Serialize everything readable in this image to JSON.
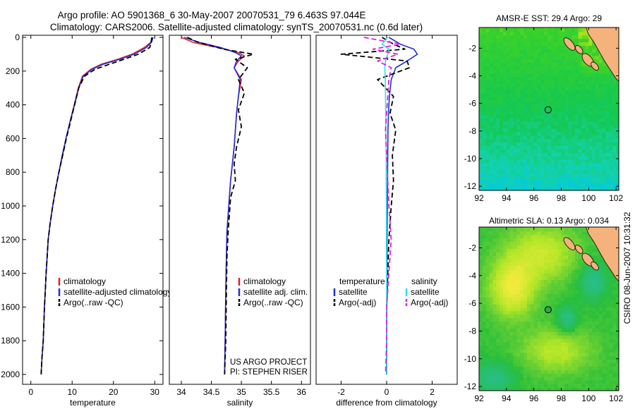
{
  "header": {
    "line1": "Argo profile: AO 5901368_6 30-May-2007 20070531_79 6.463S 97.044E",
    "line2": "Climatology: CARS2006. Satellite-adjusted climatology: synTS_20070531.nc (0.6d later)"
  },
  "side_label": "CSIRO 08-Jun-2007 10:31:32",
  "colors": {
    "red": "#e02020",
    "blue": "#1f2fd8",
    "black": "#000000",
    "cyan": "#30e0e8",
    "magenta": "#e020e0"
  },
  "chart_data": [
    {
      "type": "line",
      "id": "temperature",
      "xlabel": "temperature",
      "xlim": [
        -2,
        32
      ],
      "ylim": [
        2080,
        0
      ],
      "y_reversed": true,
      "xticks": [
        0,
        10,
        20,
        30
      ],
      "yticks": [
        0,
        200,
        400,
        600,
        800,
        1000,
        1200,
        1400,
        1600,
        1800,
        2000
      ],
      "legend": {
        "position": "right-middle",
        "entries": [
          "climatology",
          "satellite-adjusted climatology",
          "Argo(..raw -QC)"
        ]
      },
      "series": [
        {
          "name": "climatology",
          "color": "red",
          "style": "solid",
          "x": [
            29.5,
            29.0,
            27.5,
            24.5,
            21.0,
            17.0,
            14.5,
            12.5,
            11.5,
            10.5,
            9.5,
            8.5,
            7.7,
            6.8,
            6.0,
            5.3,
            4.7,
            4.2,
            3.7,
            3.3,
            3.0,
            2.7,
            2.5
          ],
          "y": [
            0,
            30,
            60,
            100,
            130,
            160,
            190,
            230,
            300,
            400,
            500,
            600,
            700,
            800,
            900,
            1000,
            1100,
            1200,
            1400,
            1600,
            1800,
            1900,
            2000
          ]
        },
        {
          "name": "satellite-adjusted climatology",
          "color": "blue",
          "style": "solid",
          "x": [
            29.6,
            29.2,
            28.0,
            25.0,
            21.5,
            17.5,
            14.8,
            12.7,
            11.6,
            10.6,
            9.5,
            8.5,
            7.6,
            6.8,
            6.0,
            5.3,
            4.7,
            4.2,
            3.7,
            3.3,
            3.0,
            2.7,
            2.5
          ],
          "y": [
            0,
            30,
            60,
            100,
            130,
            160,
            190,
            230,
            300,
            400,
            500,
            600,
            700,
            800,
            900,
            1000,
            1100,
            1200,
            1400,
            1600,
            1800,
            1900,
            2000
          ]
        },
        {
          "name": "Argo(..raw -QC)",
          "color": "black",
          "style": "dashed",
          "x": [
            29.3,
            29.1,
            28.8,
            26.0,
            22.5,
            19.0,
            15.5,
            13.0,
            11.6,
            10.6,
            9.6,
            8.6,
            7.7,
            6.8,
            6.0,
            5.3,
            4.7,
            4.2,
            3.7,
            3.3,
            3.0,
            2.7,
            2.5
          ],
          "y": [
            0,
            30,
            60,
            100,
            130,
            160,
            190,
            230,
            300,
            400,
            500,
            600,
            700,
            800,
            900,
            1000,
            1100,
            1200,
            1400,
            1600,
            1800,
            1900,
            2000
          ]
        }
      ]
    },
    {
      "type": "line",
      "id": "salinity",
      "xlabel": "salinity",
      "xlim": [
        33.8,
        36.15
      ],
      "ylim": [
        2080,
        0
      ],
      "y_reversed": true,
      "xticks": [
        34,
        34.5,
        35,
        35.5,
        36
      ],
      "yticks": [],
      "legend": {
        "position": "right-middle",
        "entries": [
          "climatology",
          "satellite adj. clim.",
          "Argo(..raw -QC)"
        ]
      },
      "annotations": [
        "US ARGO PROJECT",
        "PI: STEPHEN RISER"
      ],
      "series": [
        {
          "name": "climatology",
          "color": "red",
          "style": "solid",
          "x": [
            34.0,
            34.2,
            34.6,
            34.95,
            35.05,
            34.95,
            34.88,
            35.0,
            34.95,
            34.92,
            34.9,
            34.88,
            34.85,
            34.82,
            34.8,
            34.78,
            34.76,
            34.75,
            34.74,
            34.73,
            34.72
          ],
          "y": [
            0,
            30,
            60,
            90,
            110,
            140,
            180,
            250,
            350,
            450,
            550,
            650,
            750,
            850,
            950,
            1050,
            1150,
            1300,
            1500,
            1800,
            2000
          ]
        },
        {
          "name": "satellite adj. clim.",
          "color": "blue",
          "style": "solid",
          "x": [
            34.05,
            34.3,
            34.65,
            34.9,
            35.0,
            34.92,
            34.88,
            34.98,
            34.95,
            34.92,
            34.9,
            34.88,
            34.85,
            34.82,
            34.8,
            34.78,
            34.76,
            34.75,
            34.74,
            34.73,
            34.72
          ],
          "y": [
            0,
            30,
            60,
            90,
            110,
            140,
            180,
            250,
            350,
            450,
            550,
            650,
            750,
            850,
            950,
            1050,
            1150,
            1300,
            1500,
            1800,
            2000
          ]
        },
        {
          "name": "Argo(..raw -QC)",
          "color": "black",
          "style": "dashed",
          "x": [
            34.1,
            34.25,
            34.5,
            34.7,
            35.2,
            34.9,
            35.1,
            34.95,
            35.05,
            34.95,
            35.0,
            34.92,
            34.88,
            34.9,
            34.82,
            34.8,
            34.78,
            34.76,
            34.75,
            34.74,
            34.73,
            34.72
          ],
          "y": [
            0,
            25,
            50,
            70,
            100,
            130,
            180,
            250,
            330,
            430,
            530,
            650,
            750,
            850,
            950,
            1050,
            1150,
            1300,
            1500,
            1800,
            1900,
            2000
          ]
        }
      ]
    },
    {
      "type": "line",
      "id": "difference",
      "xlabel": "difference from climatology",
      "xlim": [
        -3.1,
        3.1
      ],
      "ylim": [
        2080,
        0
      ],
      "y_reversed": true,
      "xticks": [
        -2,
        0,
        2
      ],
      "yticks": [],
      "legend": {
        "position": "right-middle",
        "headers": [
          "temperature",
          "salinity"
        ],
        "entries": [
          "satellite",
          "Argo(-adj)",
          "satellite",
          "Argo(-adj)"
        ]
      },
      "series": [
        {
          "name": "temperature satellite",
          "color": "blue",
          "style": "solid",
          "x": [
            0.1,
            0.6,
            1.2,
            1.35,
            0.9,
            0.4,
            0.2,
            0.12,
            0.08,
            0.06,
            0.05,
            0.04,
            0.03,
            0.02,
            0.02,
            0.01,
            0.0,
            0.0
          ],
          "y": [
            0,
            40,
            70,
            100,
            140,
            180,
            250,
            350,
            450,
            550,
            700,
            850,
            1000,
            1200,
            1400,
            1600,
            1800,
            2000
          ]
        },
        {
          "name": "temperature Argo(-adj)",
          "color": "black",
          "style": "dashed",
          "x": [
            -0.2,
            0.3,
            0.8,
            -2.0,
            0.9,
            1.0,
            -0.4,
            0.3,
            0.15,
            0.4,
            0.25,
            0.3,
            0.2,
            0.1,
            0.05,
            0.0,
            0.0,
            0.0
          ],
          "y": [
            0,
            40,
            70,
            100,
            140,
            180,
            250,
            350,
            450,
            550,
            700,
            850,
            1000,
            1200,
            1400,
            1600,
            1800,
            2000
          ]
        },
        {
          "name": "salinity satellite",
          "color": "cyan",
          "style": "solid",
          "x": [
            0.05,
            -0.2,
            0.1,
            0.05,
            -0.05,
            -0.08,
            -0.06,
            -0.05,
            -0.04,
            -0.03,
            -0.02,
            -0.02,
            -0.01,
            -0.01,
            0.0,
            0.0,
            0.0,
            0.0
          ],
          "y": [
            0,
            40,
            70,
            100,
            140,
            180,
            250,
            350,
            450,
            550,
            700,
            850,
            1000,
            1200,
            1400,
            1600,
            1800,
            2000
          ]
        },
        {
          "name": "salinity Argo(-adj)",
          "color": "magenta",
          "style": "dashed",
          "x": [
            -1.0,
            0.6,
            -0.6,
            0.5,
            -0.4,
            0.2,
            0.1,
            0.05,
            0.0,
            -0.05,
            0.0,
            0.05,
            0.1,
            0.2,
            0.1,
            0.0,
            0.0,
            -0.05
          ],
          "y": [
            0,
            40,
            70,
            100,
            140,
            180,
            250,
            350,
            450,
            550,
            700,
            850,
            1000,
            1200,
            1400,
            1600,
            1800,
            2000
          ]
        }
      ]
    },
    {
      "type": "heatmap",
      "id": "sst-map",
      "title": "AMSR-E SST: 29.4 Argo: 29",
      "xlim": [
        92,
        102.2
      ],
      "ylim": [
        -12.3,
        -0.5
      ],
      "xticks": [
        92,
        94,
        96,
        98,
        100,
        102
      ],
      "yticks": [
        -2,
        -4,
        -6,
        -8,
        -10,
        -12
      ],
      "marker": {
        "lon": 97.044,
        "lat": -6.463,
        "filled": false
      }
    },
    {
      "type": "heatmap",
      "id": "sla-map",
      "title": "Altimetric SLA: 0.13 Argo: 0.034",
      "xlim": [
        92,
        102.2
      ],
      "ylim": [
        -12.3,
        -0.5
      ],
      "xticks": [
        92,
        94,
        96,
        98,
        100,
        102
      ],
      "yticks": [
        -2,
        -4,
        -6,
        -8,
        -10,
        -12
      ],
      "marker": {
        "lon": 97.044,
        "lat": -6.463,
        "filled": true
      }
    }
  ]
}
